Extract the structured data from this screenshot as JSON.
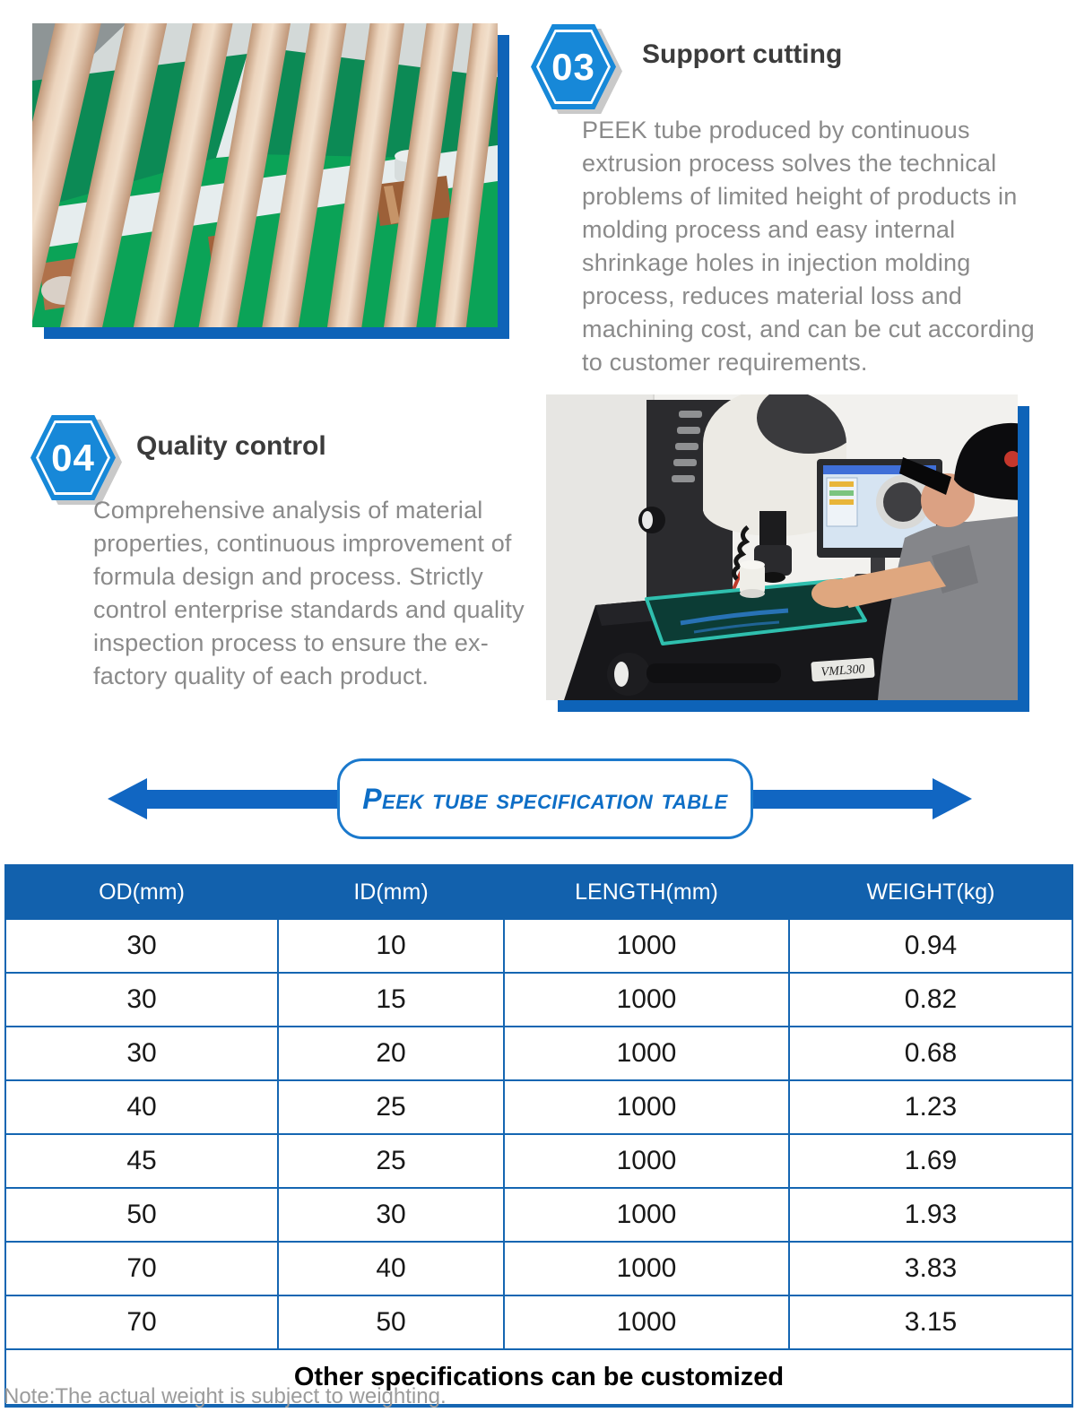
{
  "colors": {
    "accent_blue": "#1166c2",
    "hexagon_blue": "#1788d8",
    "table_header_blue": "#1261ad",
    "table_border_blue": "#1566b2",
    "photo_accent_blue": "#0e63b8",
    "banner_text_blue": "#0e6ec6",
    "heading_gray": "#3b3b3b",
    "body_text_gray": "#8a8a8a"
  },
  "steps": [
    {
      "badge": "03",
      "title": "Support cutting",
      "body": "PEEK tube produced by continuous extrusion process solves the technical problems of limited height of products in molding process and easy internal shrinkage holes in injection molding process, reduces material loss and machining cost, and can be cut according to customer requirements."
    },
    {
      "badge": "04",
      "title": "Quality control",
      "body": "Comprehensive analysis of material properties, continuous improvement of formula design and process. Strictly control enterprise standards and quality inspection process to ensure the ex-factory quality of each product."
    }
  ],
  "photos": {
    "quality": {
      "machine_label": "VML300"
    }
  },
  "banner": {
    "title": "Peek tube specification table"
  },
  "spec_table": {
    "headers": [
      "OD(mm)",
      "ID(mm)",
      "LENGTH(mm)",
      "WEIGHT(kg)"
    ],
    "rows": [
      [
        "30",
        "10",
        "1000",
        "0.94"
      ],
      [
        "30",
        "15",
        "1000",
        "0.82"
      ],
      [
        "30",
        "20",
        "1000",
        "0.68"
      ],
      [
        "40",
        "25",
        "1000",
        "1.23"
      ],
      [
        "45",
        "25",
        "1000",
        "1.69"
      ],
      [
        "50",
        "30",
        "1000",
        "1.93"
      ],
      [
        "70",
        "40",
        "1000",
        "3.83"
      ],
      [
        "70",
        "50",
        "1000",
        "3.15"
      ]
    ],
    "footer": "Other specifications can be customized"
  },
  "note": "Note:The actual weight is subject to weighting."
}
